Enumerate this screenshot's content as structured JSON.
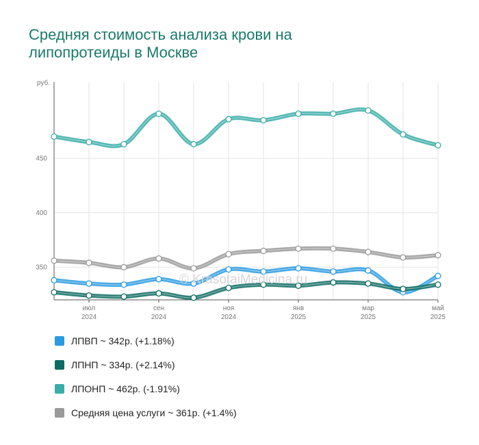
{
  "title_line1": "Средняя стоимость анализа крови на",
  "title_line2": "липопротеиды в Москве",
  "watermark": "© KrasotaiMedicina.ru",
  "chart_data": {
    "type": "line",
    "y_unit_label": "руб.",
    "ylim": [
      320,
      520
    ],
    "yticks": [
      350,
      400,
      450
    ],
    "grid": true,
    "x_labels": [
      {
        "index": 1,
        "month": "июл",
        "year": "2024"
      },
      {
        "index": 3,
        "month": "сен",
        "year": "2024"
      },
      {
        "index": 5,
        "month": "ноя",
        "year": "2024"
      },
      {
        "index": 7,
        "month": "янв",
        "year": "2025"
      },
      {
        "index": 9,
        "month": "мар",
        "year": "2025"
      },
      {
        "index": 11,
        "month": "май",
        "year": "2025"
      }
    ],
    "series": [
      {
        "name": "ЛПОНП",
        "color": "#3aada8",
        "values": [
          470,
          465,
          463,
          491,
          463,
          486,
          485,
          491,
          491,
          494,
          472,
          462
        ]
      },
      {
        "name": "Средняя цена услуги",
        "color": "#9a9a9a",
        "values": [
          356,
          354,
          350,
          358,
          349,
          362,
          365,
          367,
          367,
          364,
          359,
          361
        ]
      },
      {
        "name": "ЛПВП",
        "color": "#2a9be0",
        "values": [
          338,
          335,
          334,
          339,
          335,
          348,
          346,
          349,
          346,
          347,
          327,
          342
        ]
      },
      {
        "name": "ЛПНП",
        "color": "#0d6b63",
        "values": [
          327,
          324,
          323,
          326,
          322,
          331,
          334,
          333,
          336,
          335,
          330,
          334
        ]
      }
    ]
  },
  "legend": [
    {
      "label": "ЛПВП ~ 342р. (+1.18%)",
      "color": "#2a9be0"
    },
    {
      "label": "ЛПНП ~ 334р. (+2.14%)",
      "color": "#0d6b63"
    },
    {
      "label": "ЛПОНП ~ 462р. (-1.91%)",
      "color": "#3aada8"
    },
    {
      "label": "Средняя цена услуги ~ 361р. (+1.4%)",
      "color": "#9a9a9a"
    }
  ]
}
